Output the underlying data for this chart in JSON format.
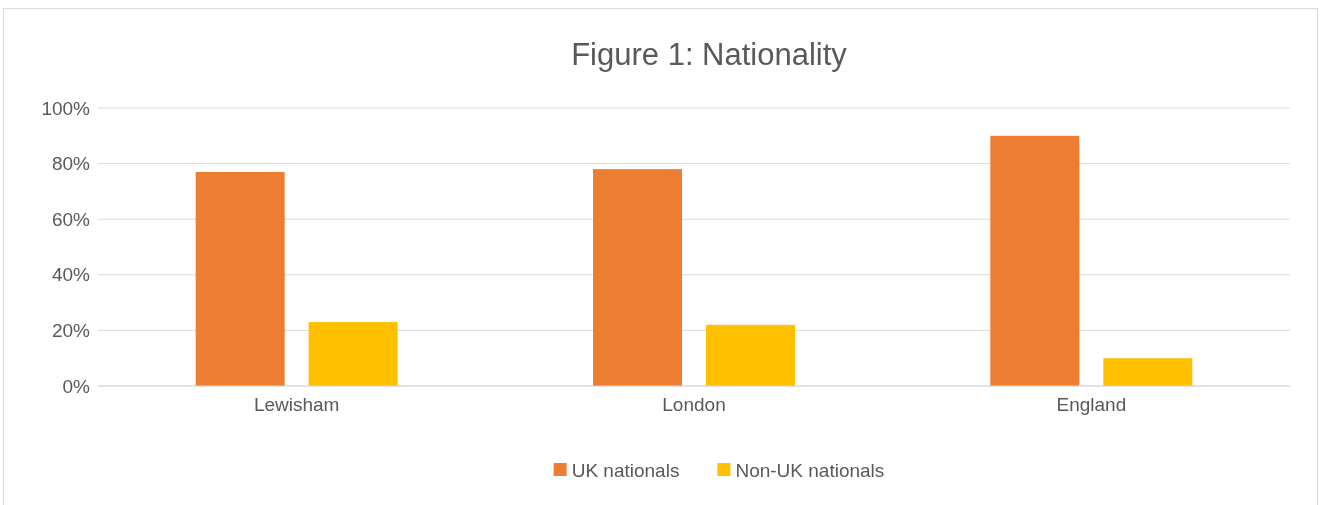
{
  "chart_data": {
    "type": "bar",
    "title": "Figure 1: Nationality",
    "categories": [
      "Lewisham",
      "London",
      "England"
    ],
    "series": [
      {
        "name": "UK nationals",
        "color": "#ed7d31",
        "values": [
          77,
          78,
          90
        ]
      },
      {
        "name": "Non-UK nationals",
        "color": "#ffc000",
        "values": [
          23,
          22,
          10
        ]
      }
    ],
    "ylim": [
      0,
      100
    ],
    "yticks": [
      {
        "value": 0,
        "label": "0%"
      },
      {
        "value": 20,
        "label": "20%"
      },
      {
        "value": 40,
        "label": "40%"
      },
      {
        "value": 60,
        "label": "60%"
      },
      {
        "value": 80,
        "label": "80%"
      },
      {
        "value": 100,
        "label": "100%"
      }
    ],
    "grid": "y",
    "legend": "bottom"
  }
}
